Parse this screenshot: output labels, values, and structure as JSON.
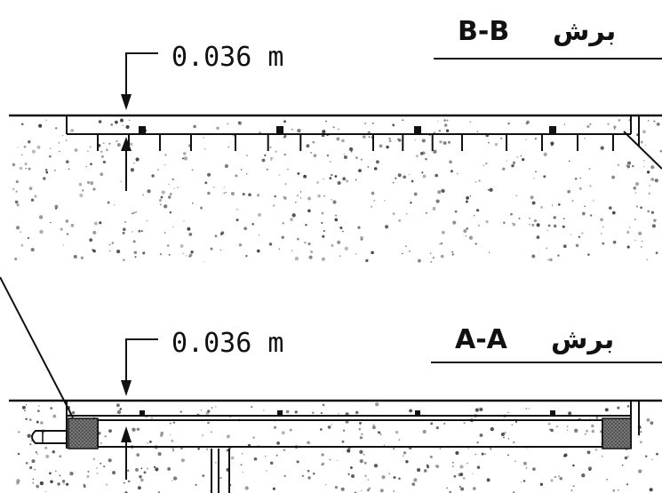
{
  "section_bb": {
    "label": "B-B",
    "prefix": "برش",
    "dimension": "0.036 m"
  },
  "section_aa": {
    "label": "A-A",
    "prefix": "برش",
    "dimension": "0.036 m"
  },
  "colors": {
    "line": "#111111",
    "speckle": "#3a3a3a",
    "hatch": "#555555"
  }
}
